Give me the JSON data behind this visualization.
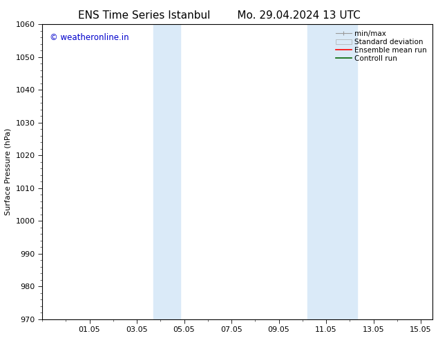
{
  "title_left": "ENS Time Series Istanbul",
  "title_right": "Mo. 29.04.2024 13 UTC",
  "ylabel": "Surface Pressure (hPa)",
  "ylim": [
    970,
    1060
  ],
  "yticks": [
    970,
    980,
    990,
    1000,
    1010,
    1020,
    1030,
    1040,
    1050,
    1060
  ],
  "xlim": [
    0,
    16.5
  ],
  "xtick_labels": [
    "01.05",
    "03.05",
    "05.05",
    "07.05",
    "09.05",
    "11.05",
    "13.05",
    "15.05"
  ],
  "xtick_positions": [
    2,
    4,
    6,
    8,
    10,
    12,
    14,
    16
  ],
  "shaded_regions": [
    {
      "x_start": 4.7,
      "x_end": 5.3,
      "color": "#daeaf8"
    },
    {
      "x_start": 5.3,
      "x_end": 5.85,
      "color": "#daeaf8"
    },
    {
      "x_start": 11.2,
      "x_end": 11.85,
      "color": "#daeaf8"
    },
    {
      "x_start": 11.85,
      "x_end": 13.3,
      "color": "#daeaf8"
    }
  ],
  "watermark_text": "© weatheronline.in",
  "watermark_color": "#0000cc",
  "watermark_fontsize": 8.5,
  "bg_color": "#ffffff",
  "title_fontsize": 11,
  "axis_fontsize": 8,
  "ylabel_fontsize": 8,
  "legend_fontsize": 7.5
}
